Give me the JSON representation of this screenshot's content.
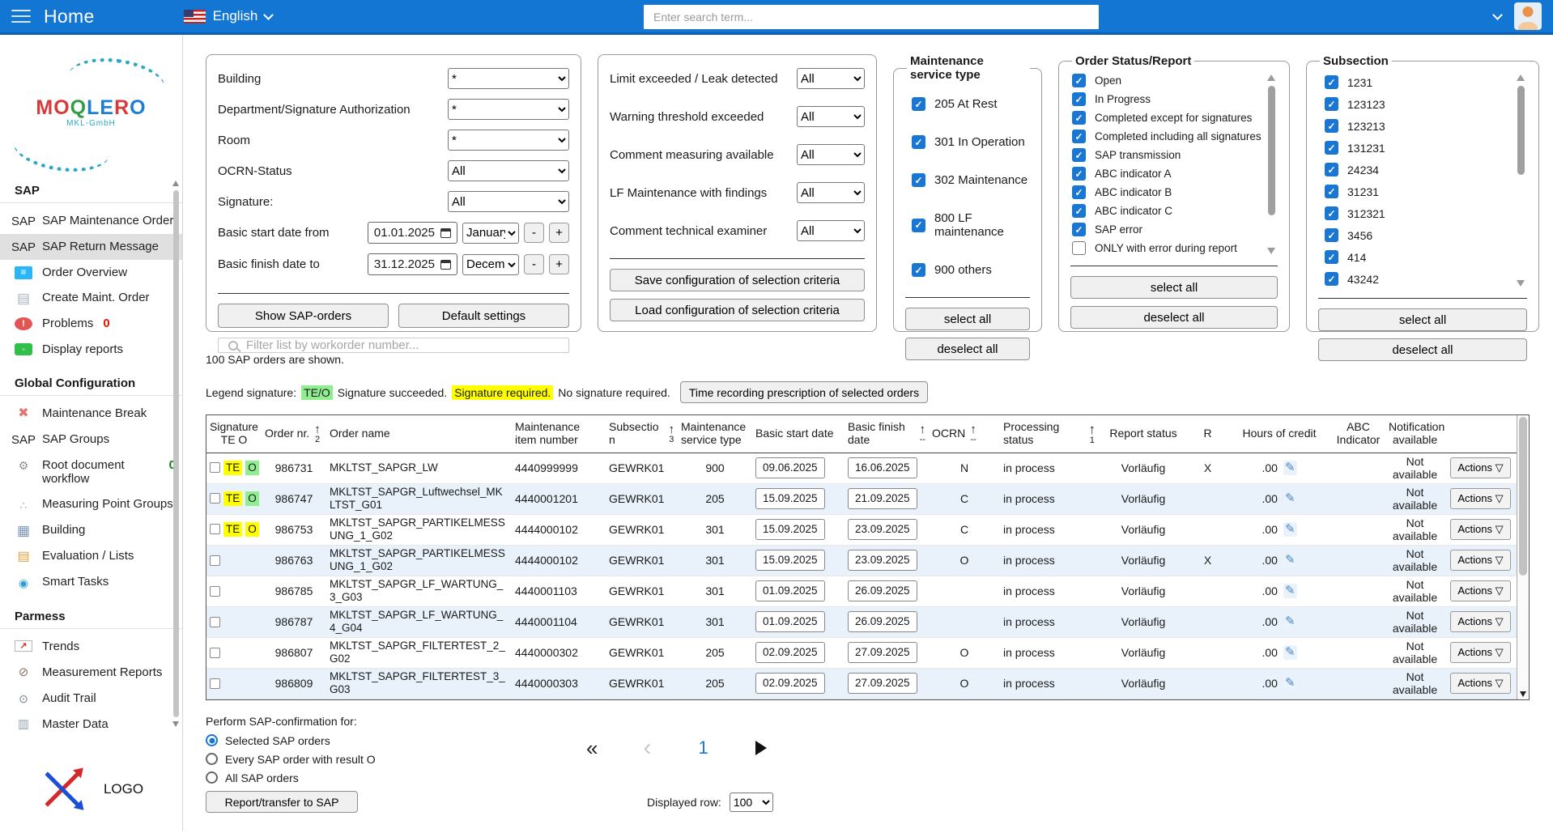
{
  "topbar": {
    "title": "Home",
    "language": "English",
    "search_placeholder": "Enter search term..."
  },
  "sidebar": {
    "logo_text": "MOQLERO",
    "logo_letter_colors": [
      "#d63a3a",
      "#d63a3a",
      "#2f9e44",
      "#1c7ed6",
      "#1c7ed6",
      "#d63a3a",
      "#1c7ed6"
    ],
    "logo_subtext": "MKL-GmbH",
    "bottom_logo_text": "LOGO",
    "sections": [
      {
        "title": "SAP",
        "items": [
          {
            "label": "SAP Maintenance Order",
            "icon": "sap"
          },
          {
            "label": "SAP Return Message",
            "icon": "sap",
            "active": true
          },
          {
            "label": "Order Overview",
            "icon": "overview"
          },
          {
            "label": "Create Maint. Order",
            "icon": "create"
          },
          {
            "label": "Problems",
            "icon": "problem",
            "badge": "0",
            "badge_color": "#e11900"
          },
          {
            "label": "Display reports",
            "icon": "reports"
          }
        ]
      },
      {
        "title": "Global Configuration",
        "items": [
          {
            "label": "Maintenance Break",
            "icon": "break"
          },
          {
            "label": "SAP Groups",
            "icon": "sap"
          },
          {
            "label": "Root document workflow",
            "icon": "workflow",
            "badge": "0",
            "badge_color": "#0f7d0f"
          },
          {
            "label": "Measuring Point Groups",
            "icon": "measuring"
          },
          {
            "label": "Building",
            "icon": "building"
          },
          {
            "label": "Evaluation / Lists",
            "icon": "evaluation"
          },
          {
            "label": "Smart Tasks",
            "icon": "smart"
          }
        ]
      },
      {
        "title": "Parmess",
        "items": [
          {
            "label": "Trends",
            "icon": "trends"
          },
          {
            "label": "Measurement Reports",
            "icon": "gauge"
          },
          {
            "label": "Audit Trail",
            "icon": "audit"
          },
          {
            "label": "Master Data",
            "icon": "master"
          }
        ]
      }
    ]
  },
  "filters": {
    "fields": [
      {
        "label": "Building",
        "value": "*"
      },
      {
        "label": "Department/Signature Authorization",
        "value": "*"
      },
      {
        "label": "Room",
        "value": "*"
      },
      {
        "label": "OCRN-Status",
        "value": "All"
      },
      {
        "label": "Signature:",
        "value": "All"
      }
    ],
    "date_from": {
      "label": "Basic start date from",
      "value": "01.01.2025",
      "month": "January"
    },
    "date_to": {
      "label": "Basic finish date to",
      "value": "31.12.2025",
      "month": "December"
    },
    "minus_label": "-",
    "plus_label": "+",
    "show_button": "Show SAP-orders",
    "default_button": "Default settings",
    "filter_placeholder": "Filter list by workorder number..."
  },
  "criteria": {
    "fields": [
      {
        "label": "Limit exceeded / Leak detected",
        "value": "All"
      },
      {
        "label": "Warning threshold exceeded",
        "value": "All"
      },
      {
        "label": "Comment measuring available",
        "value": "All"
      },
      {
        "label": "LF Maintenance with findings",
        "value": "All"
      },
      {
        "label": "Comment technical examiner",
        "value": "All"
      }
    ],
    "save_button": "Save configuration of selection criteria",
    "load_button": "Load configuration of selection criteria"
  },
  "service_type": {
    "title": "Maintenance service type",
    "options": [
      {
        "label": "205 At Rest",
        "checked": true
      },
      {
        "label": "301 In Operation",
        "checked": true
      },
      {
        "label": "302 Maintenance",
        "checked": true
      },
      {
        "label": "800 LF maintenance",
        "checked": true
      },
      {
        "label": "900 others",
        "checked": true
      }
    ],
    "select_all": "select all",
    "deselect_all": "deselect all"
  },
  "order_status": {
    "title": "Order Status/Report",
    "options": [
      {
        "label": "Open",
        "checked": true
      },
      {
        "label": "In Progress",
        "checked": true
      },
      {
        "label": "Completed except for signatures",
        "checked": true
      },
      {
        "label": "Completed including all signatures",
        "checked": true
      },
      {
        "label": "SAP transmission",
        "checked": true
      },
      {
        "label": "ABC indicator A",
        "checked": true
      },
      {
        "label": "ABC indicator B",
        "checked": true
      },
      {
        "label": "ABC indicator C",
        "checked": true
      },
      {
        "label": "SAP error",
        "checked": true
      },
      {
        "label": "ONLY with error during report",
        "checked": false
      }
    ],
    "select_all": "select all",
    "deselect_all": "deselect all"
  },
  "subsection": {
    "title": "Subsection",
    "options": [
      {
        "label": "1231",
        "checked": true
      },
      {
        "label": "123123",
        "checked": true
      },
      {
        "label": "123213",
        "checked": true
      },
      {
        "label": "131231",
        "checked": true
      },
      {
        "label": "24234",
        "checked": true
      },
      {
        "label": "31231",
        "checked": true
      },
      {
        "label": "312321",
        "checked": true
      },
      {
        "label": "3456",
        "checked": true
      },
      {
        "label": "414",
        "checked": true
      },
      {
        "label": "43242",
        "checked": true
      }
    ],
    "select_all": "select all",
    "deselect_all": "deselect all"
  },
  "summary": "100 SAP orders are shown.",
  "legend": {
    "label": "Legend signature:",
    "teo": "TE/O",
    "succeeded": "Signature succeeded.",
    "required": "Signature required.",
    "not_required": "No signature required.",
    "time_button": "Time recording prescription of selected orders",
    "highlight_green": "#90ee90",
    "highlight_yellow": "#ffff00"
  },
  "table": {
    "columns": [
      {
        "label": "Signature",
        "label2": "TE O"
      },
      {
        "label": "Order nr.",
        "sort": "2"
      },
      {
        "label": "Order name"
      },
      {
        "label": "Maintenance item number"
      },
      {
        "label": "Subsection",
        "sort": "3"
      },
      {
        "label": "Maintenance service type"
      },
      {
        "label": "Basic start date"
      },
      {
        "label": "Basic finish date",
        "sort": "--"
      },
      {
        "label": "OCRN",
        "sort": "--"
      },
      {
        "label": "Processing status",
        "sort": "1"
      },
      {
        "label": "Report status"
      },
      {
        "label": "R"
      },
      {
        "label": "Hours of credit"
      },
      {
        "label": "ABC Indicator"
      },
      {
        "label": "Notification available"
      },
      {
        "label": ""
      }
    ],
    "actions_label": "Actions",
    "rows": [
      {
        "te": "TE",
        "te_hl": "yellow",
        "o": "O",
        "o_hl": "green",
        "order_nr": "986731",
        "order_name": "MKLTST_SAPGR_LW",
        "item_number": "4440999999",
        "subsection": "GEWRK01",
        "service_type": "900",
        "start_date": "09.06.2025",
        "finish_date": "16.06.2025",
        "ocrn": "N",
        "processing": "in process",
        "report_status": "Vorläufig",
        "r": "X",
        "hours": ".00",
        "abc": "",
        "notification": "Not available"
      },
      {
        "te": "TE",
        "te_hl": "yellow",
        "o": "O",
        "o_hl": "green",
        "order_nr": "986747",
        "order_name": "MKLTST_SAPGR_Luftwechsel_MKLTST_G01",
        "item_number": "4440001201",
        "subsection": "GEWRK01",
        "service_type": "205",
        "start_date": "15.09.2025",
        "finish_date": "21.09.2025",
        "ocrn": "C",
        "processing": "in process",
        "report_status": "Vorläufig",
        "r": "",
        "hours": ".00",
        "abc": "",
        "notification": "Not available"
      },
      {
        "te": "TE",
        "te_hl": "yellow",
        "o": "O",
        "o_hl": "yellow",
        "order_nr": "986753",
        "order_name": "MKLTST_SAPGR_PARTIKELMESSUNG_1_G02",
        "item_number": "4444000102",
        "subsection": "GEWRK01",
        "service_type": "301",
        "start_date": "15.09.2025",
        "finish_date": "23.09.2025",
        "ocrn": "C",
        "processing": "in process",
        "report_status": "Vorläufig",
        "r": "",
        "hours": ".00",
        "abc": "",
        "notification": "Not available"
      },
      {
        "te": "",
        "te_hl": "",
        "o": "",
        "o_hl": "",
        "order_nr": "986763",
        "order_name": "MKLTST_SAPGR_PARTIKELMESSUNG_1_G02",
        "item_number": "4444000102",
        "subsection": "GEWRK01",
        "service_type": "301",
        "start_date": "15.09.2025",
        "finish_date": "23.09.2025",
        "ocrn": "O",
        "processing": "in process",
        "report_status": "Vorläufig",
        "r": "X",
        "hours": ".00",
        "abc": "",
        "notification": "Not available"
      },
      {
        "te": "",
        "te_hl": "",
        "o": "",
        "o_hl": "",
        "order_nr": "986785",
        "order_name": "MKLTST_SAPGR_LF_WARTUNG_3_G03",
        "item_number": "4440001103",
        "subsection": "GEWRK01",
        "service_type": "301",
        "start_date": "01.09.2025",
        "finish_date": "26.09.2025",
        "ocrn": "",
        "processing": "in process",
        "report_status": "Vorläufig",
        "r": "",
        "hours": ".00",
        "abc": "",
        "notification": "Not available"
      },
      {
        "te": "",
        "te_hl": "",
        "o": "",
        "o_hl": "",
        "order_nr": "986787",
        "order_name": "MKLTST_SAPGR_LF_WARTUNG_4_G04",
        "item_number": "4440001104",
        "subsection": "GEWRK01",
        "service_type": "301",
        "start_date": "01.09.2025",
        "finish_date": "26.09.2025",
        "ocrn": "",
        "processing": "in process",
        "report_status": "Vorläufig",
        "r": "",
        "hours": ".00",
        "abc": "",
        "notification": "Not available"
      },
      {
        "te": "",
        "te_hl": "",
        "o": "",
        "o_hl": "",
        "order_nr": "986807",
        "order_name": "MKLTST_SAPGR_FILTERTEST_2_G02",
        "item_number": "4440000302",
        "subsection": "GEWRK01",
        "service_type": "205",
        "start_date": "02.09.2025",
        "finish_date": "27.09.2025",
        "ocrn": "O",
        "processing": "in process",
        "report_status": "Vorläufig",
        "r": "",
        "hours": ".00",
        "abc": "",
        "notification": "Not available"
      },
      {
        "te": "",
        "te_hl": "",
        "o": "",
        "o_hl": "",
        "order_nr": "986809",
        "order_name": "MKLTST_SAPGR_FILTERTEST_3_G03",
        "item_number": "4440000303",
        "subsection": "GEWRK01",
        "service_type": "205",
        "start_date": "02.09.2025",
        "finish_date": "27.09.2025",
        "ocrn": "O",
        "processing": "in process",
        "report_status": "Vorläufig",
        "r": "",
        "hours": ".00",
        "abc": "",
        "notification": "Not available"
      }
    ]
  },
  "footer": {
    "confirm_label": "Perform SAP-confirmation for:",
    "radios": [
      {
        "label": "Selected SAP orders",
        "selected": true
      },
      {
        "label": "Every SAP order with result O",
        "selected": false
      },
      {
        "label": "All SAP orders",
        "selected": false
      }
    ],
    "page": "1",
    "report_button": "Report/transfer to SAP",
    "displayed_row_label": "Displayed row:",
    "displayed_row_value": "100"
  }
}
